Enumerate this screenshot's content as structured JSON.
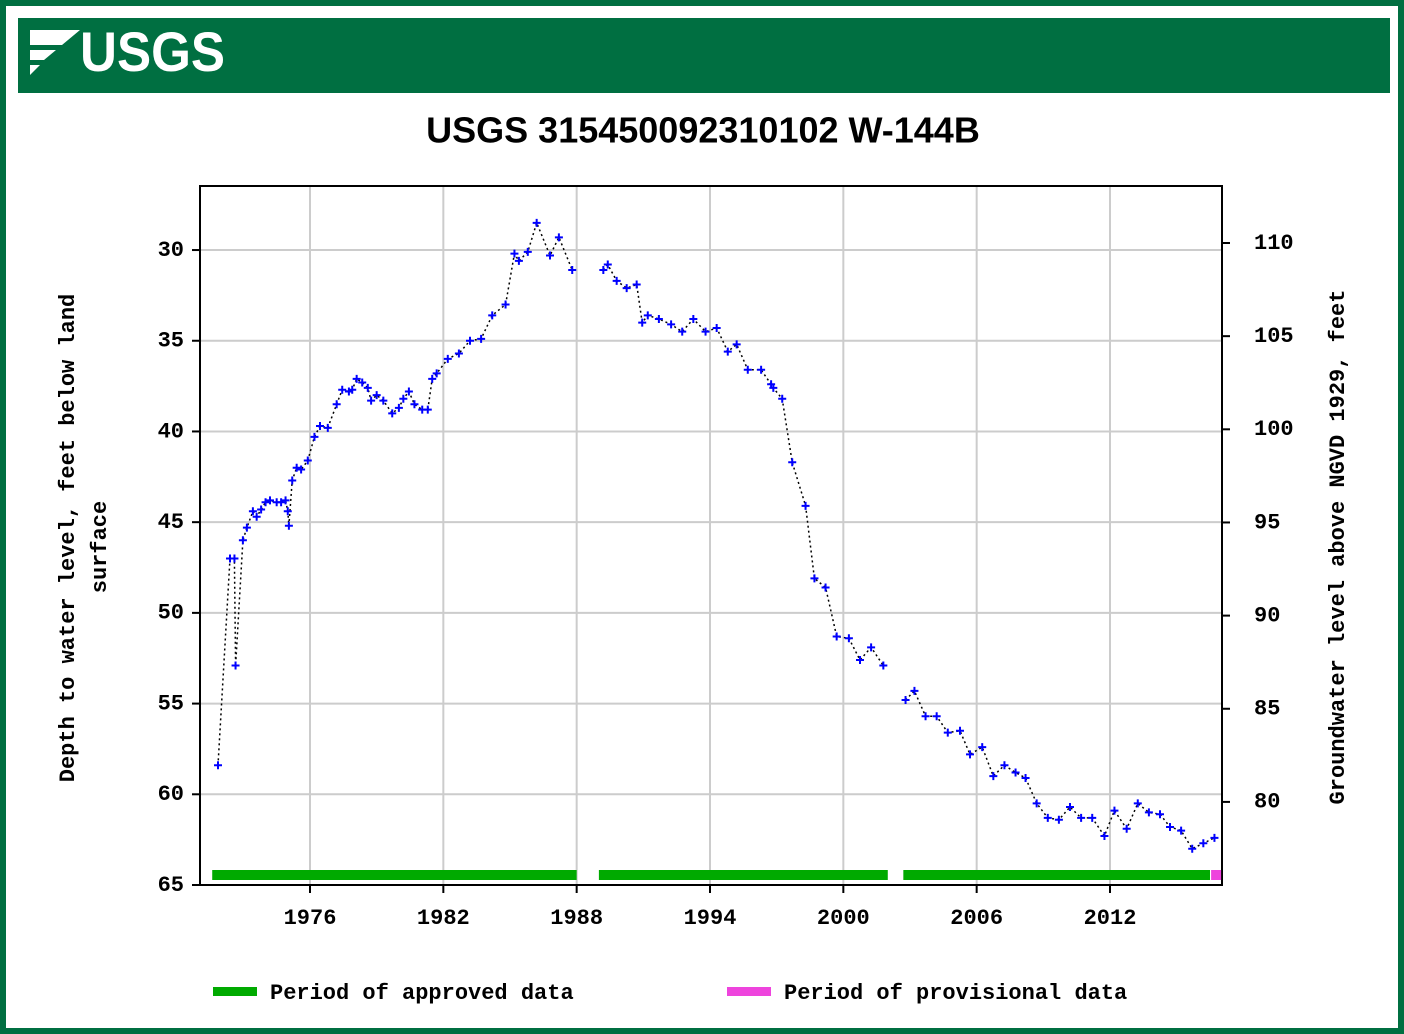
{
  "chart_data": {
    "type": "line",
    "logo": "USGS",
    "title": "USGS 315450092310102 W-144B",
    "ylabel": [
      "Depth to water level, feet below land",
      "surface"
    ],
    "y2label": "Groundwater level above NGVD 1929, feet",
    "color": "#0000ff",
    "x": [
      1971.86,
      1972.4,
      1972.6,
      1972.65,
      1972.98,
      1973.16,
      1973.43,
      1973.6,
      1973.8,
      1974.0,
      1974.2,
      1974.5,
      1974.7,
      1974.9,
      1975.0,
      1975.05,
      1975.2,
      1975.4,
      1975.6,
      1975.9,
      1976.2,
      1976.45,
      1976.8,
      1977.2,
      1977.45,
      1977.75,
      1977.9,
      1978.1,
      1978.35,
      1978.6,
      1978.75,
      1979.0,
      1979.3,
      1979.7,
      1980.0,
      1980.2,
      1980.45,
      1980.7,
      1981.05,
      1981.3,
      1981.5,
      1981.7,
      1982.2,
      1982.7,
      1983.2,
      1983.7,
      1984.2,
      1984.8,
      1985.2,
      1985.4,
      1985.8,
      1986.2,
      1986.8,
      1987.2,
      1987.8,
      null,
      1989.2,
      1989.4,
      1989.8,
      1990.25,
      1990.7,
      1990.95,
      1991.2,
      1991.7,
      1992.25,
      1992.75,
      1993.25,
      1993.8,
      1994.3,
      1994.8,
      1995.2,
      1995.7,
      1996.3,
      1996.75,
      1996.85,
      1997.25,
      1997.7,
      1998.3,
      1998.7,
      1999.2,
      1999.7,
      2000.25,
      2000.75,
      2001.25,
      2001.8,
      null,
      2002.8,
      2003.2,
      2003.7,
      2004.2,
      2004.7,
      2005.25,
      2005.7,
      2006.25,
      2006.75,
      2007.25,
      2007.75,
      2008.2,
      2008.7,
      2009.2,
      2009.7,
      2010.2,
      2010.7,
      2011.2,
      2011.75,
      2012.2,
      2012.75,
      2013.25,
      2013.75,
      2014.25,
      2014.7,
      2015.2,
      2015.7,
      2016.2,
      2016.7
    ],
    "values": [
      58.4,
      47.0,
      47.0,
      52.9,
      46.0,
      45.3,
      44.4,
      44.7,
      44.3,
      43.9,
      43.8,
      43.9,
      43.9,
      43.8,
      44.4,
      45.2,
      42.7,
      42.0,
      42.1,
      41.6,
      40.3,
      39.7,
      39.8,
      38.5,
      37.7,
      37.8,
      37.7,
      37.1,
      37.3,
      37.6,
      38.3,
      38.0,
      38.3,
      39.0,
      38.7,
      38.2,
      37.8,
      38.5,
      38.8,
      38.8,
      37.1,
      36.8,
      36.0,
      35.7,
      35.0,
      34.9,
      33.6,
      33.0,
      30.2,
      30.6,
      30.1,
      28.5,
      30.3,
      29.3,
      31.1,
      null,
      31.1,
      30.8,
      31.7,
      32.1,
      31.9,
      34.0,
      33.6,
      33.8,
      34.1,
      34.5,
      33.8,
      34.5,
      34.3,
      35.6,
      35.2,
      36.6,
      36.6,
      37.4,
      37.6,
      38.2,
      41.7,
      44.1,
      48.1,
      48.6,
      51.3,
      51.4,
      52.6,
      51.9,
      52.9,
      null,
      54.8,
      54.3,
      55.7,
      55.7,
      56.6,
      56.5,
      57.8,
      57.4,
      59.0,
      58.4,
      58.8,
      59.1,
      60.5,
      61.3,
      61.4,
      60.7,
      61.3,
      61.3,
      62.3,
      60.9,
      61.9,
      60.5,
      61.0,
      61.1,
      61.8,
      62.0,
      63.0,
      62.7,
      62.4
    ],
    "xlim": [
      1971.05,
      2017.04
    ],
    "xticks": [
      1976,
      1982,
      1988,
      1994,
      2000,
      2006,
      2012
    ],
    "ylim": [
      65,
      26.47
    ],
    "yticks": [
      30,
      35,
      40,
      45,
      50,
      55,
      60,
      65
    ],
    "y2lim": [
      75.54,
      113.06
    ],
    "y2ticks": [
      80,
      85,
      90,
      95,
      100,
      105,
      110
    ],
    "grid": true,
    "periods": [
      {
        "name": "Period of approved data",
        "color": "#00aa00",
        "ranges": [
          [
            1971.6,
            1988.0
          ],
          [
            1989.0,
            2002.0
          ],
          [
            2002.7,
            2016.5
          ]
        ]
      },
      {
        "name": "Period of provisional data",
        "color": "#ee44dd",
        "ranges": [
          [
            2016.55,
            2017.0
          ]
        ]
      }
    ]
  }
}
